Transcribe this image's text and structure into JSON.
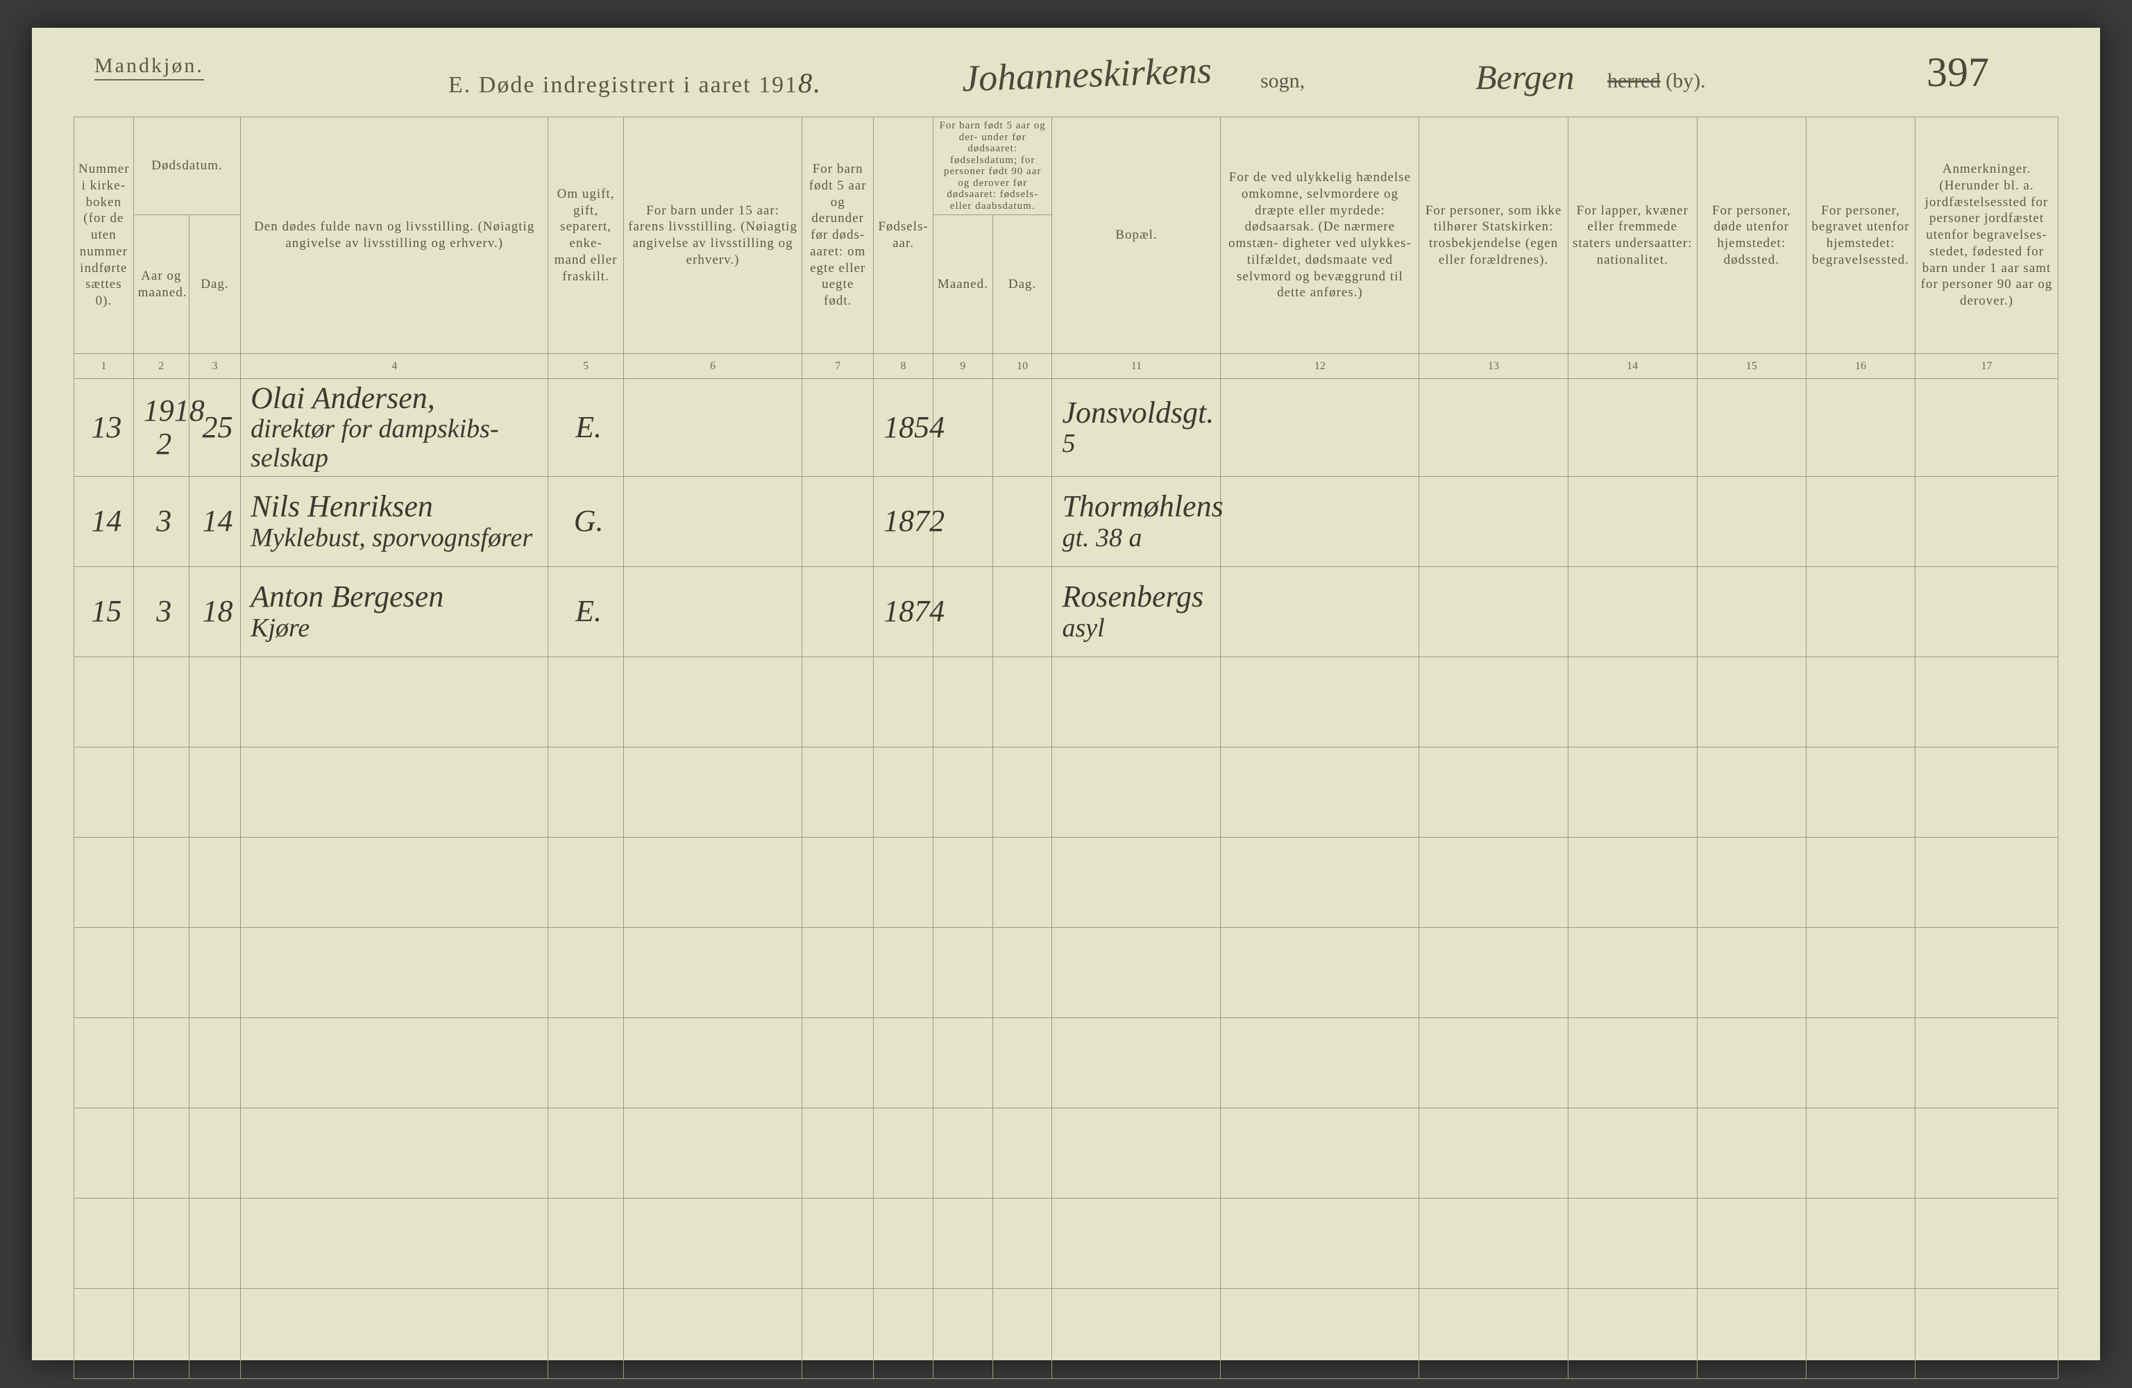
{
  "header": {
    "gender": "Mandkjøn.",
    "title_prefix": "E.  Døde indregistrert i aaret 191",
    "title_year_hand": "8.",
    "parish_hand": "Johanneskirkens",
    "parish_label": "sogn,",
    "district_hand": "Bergen",
    "district_label_strike": "herred",
    "district_label_suffix": " (by).",
    "page_number": "397"
  },
  "columns": {
    "c1": "Nummer i kirke-\nboken\n(for de uten nummer indførte sættes 0).",
    "c2a": "Dødsdatum.",
    "c2": "Aar og maaned.",
    "c3": "Dag.",
    "c4": "Den dødes fulde navn og livsstilling.\n(Nøiagtig angivelse av livsstilling og erhverv.)",
    "c5": "Om ugift, gift, separert, enke-\nmand eller fraskilt.",
    "c6": "For barn under 15 aar:\nfarens livsstilling.\n(Nøiagtig angivelse av livsstilling og erhverv.)",
    "c7": "For barn født 5 aar og derunder før døds-\naaret: om egte eller uegte født.",
    "c8": "Fødsels-\naar.",
    "c9a": "For barn født 5 aar og der-\nunder før dødsaaret: fødselsdatum; for personer født 90 aar og derover før dødsaaret: fødsels- eller daabsdatum.",
    "c9": "Maaned.",
    "c10": "Dag.",
    "c11": "Bopæl.",
    "c12": "For de ved ulykkelig hændelse omkomne, selvmordere og dræpte eller myrdede: dødsaarsak.\n(De nærmere omstæn-\ndigheter ved ulykkes-\ntilfældet, dødsmaate ved selvmord og bevæggrund til dette anføres.)",
    "c13": "For personer, som ikke tilhører Statskirken: trosbekjendelse (egen eller forældrenes).",
    "c14": "For lapper, kvæner eller fremmede staters undersaatter: nationalitet.",
    "c15": "For personer, døde utenfor hjemstedet: dødssted.",
    "c16": "For personer, begravet utenfor hjemstedet: begravelsessted.",
    "c17": "Anmerkninger.\n(Herunder bl. a. jordfæstelsessted for personer jordfæstet utenfor begravelses-\nstedet, fødested for barn under 1 aar samt for personer 90 aar og derover.)"
  },
  "colnums": [
    "1",
    "2",
    "3",
    "4",
    "5",
    "6",
    "7",
    "8",
    "9",
    "10",
    "11",
    "12",
    "13",
    "14",
    "15",
    "16",
    "17"
  ],
  "rows": [
    {
      "n": "13",
      "ym": "1918\n2",
      "d": "25",
      "name": "Olai Andersen,",
      "name2": "direktør for dampskibs-\nselskap",
      "status": "E.",
      "father": "",
      "legit": "",
      "byear": "1854",
      "bm": "",
      "bd": "",
      "residence": "Jonsvoldsgt.",
      "residence2": "5",
      "cause": "",
      "faith": "",
      "nat": "",
      "dplace": "",
      "bplace": "",
      "notes": ""
    },
    {
      "n": "14",
      "ym": "3",
      "d": "14",
      "name": "Nils Henriksen",
      "name2": "Myklebust, sporvognsfører",
      "status": "G.",
      "father": "",
      "legit": "",
      "byear": "1872",
      "bm": "",
      "bd": "",
      "residence": "Thormøhlens",
      "residence2": "gt. 38 a",
      "cause": "",
      "faith": "",
      "nat": "",
      "dplace": "",
      "bplace": "",
      "notes": ""
    },
    {
      "n": "15",
      "ym": "3",
      "d": "18",
      "name": "Anton Bergesen",
      "name2": "Kjøre",
      "status": "E.",
      "father": "",
      "legit": "",
      "byear": "1874",
      "bm": "",
      "bd": "",
      "residence": "Rosenbergs",
      "residence2": "asyl",
      "cause": "",
      "faith": "",
      "nat": "",
      "dplace": "",
      "bplace": "",
      "notes": ""
    }
  ],
  "blank_rows": 8,
  "colors": {
    "paper": "#e4e5c8",
    "ink_print": "#5a5a48",
    "ink_hand": "#3a3a2f",
    "rule": "#9a9a80",
    "background": "#3a3a3a"
  }
}
